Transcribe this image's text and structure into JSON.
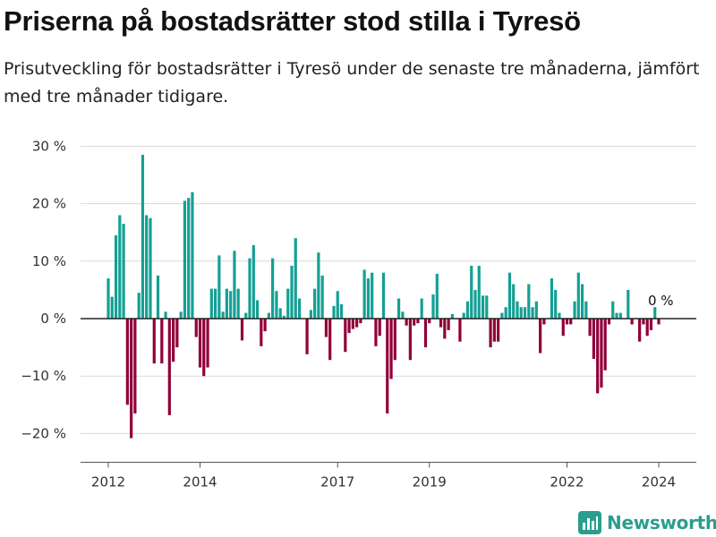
{
  "header": {
    "title": "Priserna på bostadsrätter stod stilla i Tyresö",
    "subtitle": "Prisutveckling för bostadsrätter i Tyresö under de senaste tre månaderna, jämfört med tre månader tidigare."
  },
  "branding": {
    "name": "Newsworthy",
    "icon": "newsworthy-logo-icon"
  },
  "colors": {
    "positive": "#14a094",
    "negative": "#8f0038",
    "grid": "#d9d9d9",
    "zero_line": "#222222",
    "brand": "#2a9d8f"
  },
  "chart_data": {
    "type": "bar",
    "ylim": [
      -25,
      32
    ],
    "y_ticks": [
      {
        "value": 30,
        "label": "30 %"
      },
      {
        "value": 20,
        "label": "20 %"
      },
      {
        "value": 10,
        "label": "10 %"
      },
      {
        "value": 0,
        "label": "0 %"
      },
      {
        "value": -10,
        "label": "−10 %"
      },
      {
        "value": -20,
        "label": "−20 %"
      }
    ],
    "x_ticks": [
      {
        "value": 2012,
        "label": "2012"
      },
      {
        "value": 2014,
        "label": "2014"
      },
      {
        "value": 2017,
        "label": "2017"
      },
      {
        "value": 2019,
        "label": "2019"
      },
      {
        "value": 2022,
        "label": "2022"
      },
      {
        "value": 2024,
        "label": "2024"
      }
    ],
    "grid": true,
    "legend": "none",
    "last_value_label": "0 %",
    "x": [
      2012.0,
      2012.083,
      2012.167,
      2012.25,
      2012.333,
      2012.417,
      2012.5,
      2012.583,
      2012.667,
      2012.75,
      2012.833,
      2012.917,
      2013.0,
      2013.083,
      2013.167,
      2013.25,
      2013.333,
      2013.417,
      2013.5,
      2013.583,
      2013.667,
      2013.75,
      2013.833,
      2013.917,
      2014.0,
      2014.083,
      2014.167,
      2014.25,
      2014.333,
      2014.417,
      2014.5,
      2014.583,
      2014.667,
      2014.75,
      2014.833,
      2014.917,
      2015.0,
      2015.083,
      2015.167,
      2015.25,
      2015.333,
      2015.417,
      2015.5,
      2015.583,
      2015.667,
      2015.75,
      2015.833,
      2015.917,
      2016.0,
      2016.083,
      2016.167,
      2016.25,
      2016.333,
      2016.417,
      2016.5,
      2016.583,
      2016.667,
      2016.75,
      2016.833,
      2016.917,
      2017.0,
      2017.083,
      2017.167,
      2017.25,
      2017.333,
      2017.417,
      2017.5,
      2017.583,
      2017.667,
      2017.75,
      2017.833,
      2017.917,
      2018.0,
      2018.083,
      2018.167,
      2018.25,
      2018.333,
      2018.417,
      2018.5,
      2018.583,
      2018.667,
      2018.75,
      2018.833,
      2018.917,
      2019.0,
      2019.083,
      2019.167,
      2019.25,
      2019.333,
      2019.417,
      2019.5,
      2019.583,
      2019.667,
      2019.75,
      2019.833,
      2019.917,
      2020.0,
      2020.083,
      2020.167,
      2020.25,
      2020.333,
      2020.417,
      2020.5,
      2020.583,
      2020.667,
      2020.75,
      2020.833,
      2020.917,
      2021.0,
      2021.083,
      2021.167,
      2021.25,
      2021.333,
      2021.417,
      2021.5,
      2021.583,
      2021.667,
      2021.75,
      2021.833,
      2021.917,
      2022.0,
      2022.083,
      2022.167,
      2022.25,
      2022.333,
      2022.417,
      2022.5,
      2022.583,
      2022.667,
      2022.75,
      2022.833,
      2022.917,
      2023.0,
      2023.083,
      2023.167,
      2023.25,
      2023.333,
      2023.417,
      2023.5,
      2023.583,
      2023.667,
      2023.75,
      2023.833,
      2023.917,
      2024.0,
      2024.083
    ],
    "values": [
      7.0,
      3.8,
      14.5,
      18.0,
      16.5,
      -15.0,
      -20.8,
      -16.5,
      4.5,
      28.5,
      18.0,
      17.5,
      -7.8,
      7.5,
      -7.8,
      1.2,
      -16.8,
      -7.5,
      -5.0,
      1.2,
      20.5,
      21.0,
      22.0,
      -3.2,
      -8.5,
      -10.0,
      -8.5,
      5.2,
      5.2,
      11.0,
      1.2,
      5.2,
      4.8,
      11.8,
      5.2,
      -3.8,
      1.0,
      10.5,
      12.8,
      3.2,
      -4.8,
      -2.2,
      1.0,
      10.5,
      4.8,
      1.8,
      0.5,
      5.2,
      9.2,
      14.0,
      3.5,
      0.0,
      -6.2,
      1.5,
      5.2,
      11.5,
      7.5,
      -3.2,
      -7.2,
      2.2,
      4.8,
      2.5,
      -5.8,
      -2.5,
      -1.8,
      -1.5,
      -0.8,
      8.5,
      7.0,
      8.0,
      -4.8,
      -3.0,
      8.0,
      -16.5,
      -10.5,
      -7.2,
      3.5,
      1.2,
      -1.2,
      -7.2,
      -1.2,
      -0.8,
      3.5,
      -5.0,
      -0.8,
      4.2,
      7.8,
      -1.5,
      -3.5,
      -2.0,
      0.8,
      0.0,
      -4.0,
      1.0,
      3.0,
      9.2,
      5.0,
      9.2,
      4.0,
      4.0,
      -5.0,
      -4.0,
      -4.0,
      1.0,
      2.0,
      8.0,
      6.0,
      3.0,
      2.0,
      2.0,
      6.0,
      2.0,
      3.0,
      -6.0,
      -1.0,
      0.0,
      7.0,
      5.0,
      1.0,
      -3.0,
      -1.0,
      -1.0,
      3.0,
      8.0,
      6.0,
      3.0,
      -3.0,
      -7.0,
      -13.0,
      -12.0,
      -9.0,
      -1.0,
      3.0,
      1.0,
      1.0,
      0.0,
      5.0,
      -1.0,
      0.0,
      -4.0,
      -1.0,
      -3.0,
      -2.0,
      2.0,
      -1.0,
      0.0
    ]
  }
}
